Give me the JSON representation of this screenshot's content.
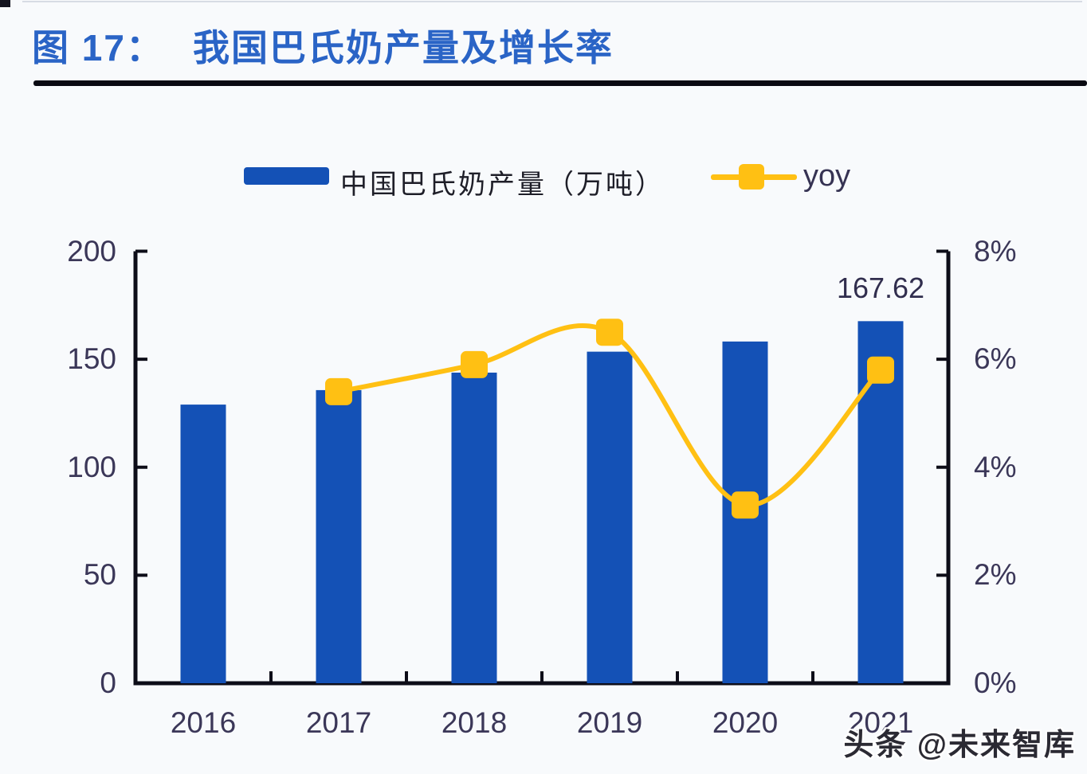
{
  "header": {
    "figure_label": "图 17：",
    "title": "我国巴氏奶产量及增长率"
  },
  "legend": {
    "production_label": "中国巴氏奶产量（万吨）",
    "yoy_label": "yoy"
  },
  "watermark": {
    "text": "头条 @未来智库"
  },
  "colors": {
    "bar": "#1451B6",
    "line": "#FFC013",
    "axis": "#0D0D18",
    "title": "#2A64C6",
    "separator": "#0A0A12",
    "tick_text": "#3B3758",
    "page_bg": "#F8FAFC"
  },
  "chart_data": {
    "type": "bar+line",
    "title": "图 17：我国巴氏奶产量及增长率",
    "categories": [
      "2016",
      "2017",
      "2018",
      "2019",
      "2020",
      "2021"
    ],
    "series": [
      {
        "name": "中国巴氏奶产量（万吨）",
        "type": "bar",
        "axis": "left",
        "color": "#1451B6",
        "values": [
          129.0,
          135.7,
          143.8,
          153.5,
          158.2,
          167.62
        ]
      },
      {
        "name": "yoy",
        "type": "line",
        "axis": "right",
        "color": "#FFC013",
        "unit": "percent",
        "values": [
          null,
          5.4,
          5.9,
          6.5,
          3.3,
          5.8
        ]
      }
    ],
    "left_axis": {
      "range": [
        0,
        200
      ],
      "tick_values": [
        0,
        50,
        100,
        150,
        200
      ],
      "tick_labels": [
        "0",
        "50",
        "100",
        "150",
        "200"
      ]
    },
    "right_axis": {
      "range": [
        0,
        8
      ],
      "tick_values": [
        0,
        2,
        4,
        6,
        8
      ],
      "tick_labels": [
        "0%",
        "2%",
        "4%",
        "6%",
        "8%"
      ]
    },
    "annotations": [
      {
        "text": "167.62",
        "category": "2021",
        "series": "中国巴氏奶产量（万吨）"
      }
    ],
    "grid": false,
    "legend_position": "top"
  }
}
